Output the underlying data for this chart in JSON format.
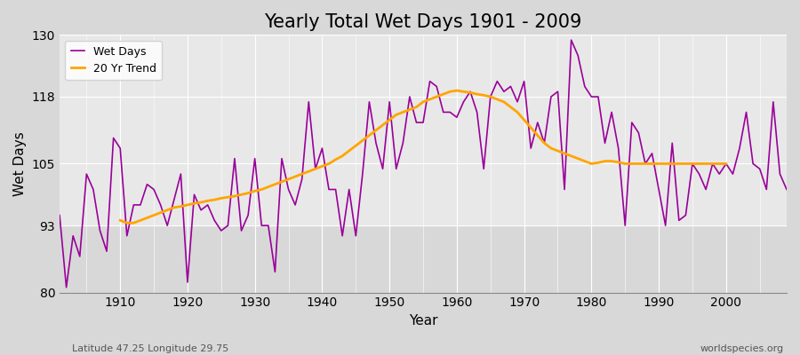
{
  "title": "Yearly Total Wet Days 1901 - 2009",
  "xlabel": "Year",
  "ylabel": "Wet Days",
  "subtitle_left": "Latitude 47.25 Longitude 29.75",
  "subtitle_right": "worldspecies.org",
  "ylim": [
    80,
    130
  ],
  "yticks": [
    80,
    93,
    105,
    118,
    130
  ],
  "bg_upper": "#dcdcdc",
  "bg_lower": "#c8c8c8",
  "line_color": "#990099",
  "trend_color": "#FFA500",
  "years": [
    1901,
    1902,
    1903,
    1904,
    1905,
    1906,
    1907,
    1908,
    1909,
    1910,
    1911,
    1912,
    1913,
    1914,
    1915,
    1916,
    1917,
    1918,
    1919,
    1920,
    1921,
    1922,
    1923,
    1924,
    1925,
    1926,
    1927,
    1928,
    1929,
    1930,
    1931,
    1932,
    1933,
    1934,
    1935,
    1936,
    1937,
    1938,
    1939,
    1940,
    1941,
    1942,
    1943,
    1944,
    1945,
    1946,
    1947,
    1948,
    1949,
    1950,
    1951,
    1952,
    1953,
    1954,
    1955,
    1956,
    1957,
    1958,
    1959,
    1960,
    1961,
    1962,
    1963,
    1964,
    1965,
    1966,
    1967,
    1968,
    1969,
    1970,
    1971,
    1972,
    1973,
    1974,
    1975,
    1976,
    1977,
    1978,
    1979,
    1980,
    1981,
    1982,
    1983,
    1984,
    1985,
    1986,
    1987,
    1988,
    1989,
    1990,
    1991,
    1992,
    1993,
    1994,
    1995,
    1996,
    1997,
    1998,
    1999,
    2000,
    2001,
    2002,
    2003,
    2004,
    2005,
    2006,
    2007,
    2008,
    2009
  ],
  "wet_days": [
    95,
    81,
    91,
    87,
    103,
    100,
    92,
    88,
    110,
    108,
    91,
    97,
    97,
    101,
    100,
    97,
    93,
    98,
    103,
    82,
    99,
    96,
    97,
    94,
    92,
    93,
    106,
    92,
    95,
    106,
    93,
    93,
    84,
    106,
    100,
    97,
    102,
    117,
    104,
    108,
    100,
    100,
    91,
    100,
    91,
    103,
    117,
    109,
    104,
    117,
    104,
    109,
    118,
    113,
    113,
    121,
    120,
    115,
    115,
    114,
    117,
    119,
    115,
    104,
    118,
    121,
    119,
    120,
    117,
    121,
    108,
    113,
    109,
    118,
    119,
    100,
    129,
    126,
    120,
    118,
    118,
    109,
    115,
    108,
    93,
    113,
    111,
    105,
    107,
    100,
    93,
    109,
    94,
    95,
    105,
    103,
    100,
    105,
    103,
    105,
    103,
    108,
    115,
    105,
    104,
    100,
    117,
    103,
    100
  ],
  "trend_years": [
    1910,
    1911,
    1912,
    1913,
    1914,
    1915,
    1916,
    1917,
    1918,
    1919,
    1920,
    1921,
    1922,
    1923,
    1924,
    1925,
    1926,
    1927,
    1928,
    1929,
    1930,
    1931,
    1932,
    1933,
    1934,
    1935,
    1936,
    1937,
    1938,
    1939,
    1940,
    1941,
    1942,
    1943,
    1944,
    1945,
    1946,
    1947,
    1948,
    1949,
    1950,
    1951,
    1952,
    1953,
    1954,
    1955,
    1956,
    1957,
    1958,
    1959,
    1960,
    1961,
    1962,
    1963,
    1964,
    1965,
    1966,
    1967,
    1968,
    1969,
    1970,
    1971,
    1972,
    1973,
    1974,
    1975,
    1976,
    1977,
    1978,
    1979,
    1980,
    1981,
    1982,
    1983,
    1984,
    1985,
    1986,
    1987,
    1988,
    1989,
    1990,
    1991,
    1992,
    1993,
    1994,
    1995,
    1996,
    1997,
    1998,
    1999,
    2000
  ],
  "trend_values": [
    94.0,
    93.5,
    93.5,
    94.0,
    94.5,
    95.0,
    95.5,
    96.0,
    96.5,
    96.7,
    97.0,
    97.3,
    97.5,
    97.8,
    98.0,
    98.3,
    98.5,
    98.7,
    99.0,
    99.3,
    99.7,
    100.0,
    100.5,
    101.0,
    101.5,
    102.0,
    102.5,
    103.0,
    103.5,
    104.0,
    104.5,
    105.0,
    105.8,
    106.5,
    107.5,
    108.5,
    109.5,
    110.5,
    111.5,
    112.5,
    113.5,
    114.5,
    115.0,
    115.5,
    116.0,
    117.0,
    117.5,
    118.0,
    118.5,
    119.0,
    119.2,
    119.0,
    118.8,
    118.5,
    118.3,
    118.0,
    117.5,
    117.0,
    116.0,
    115.0,
    113.5,
    112.0,
    110.5,
    109.0,
    108.0,
    107.5,
    107.0,
    106.5,
    106.0,
    105.5,
    105.0,
    105.2,
    105.5,
    105.5,
    105.3,
    105.0,
    105.0,
    105.0,
    105.0,
    105.0,
    105.0,
    105.0,
    105.0,
    105.0,
    105.0,
    105.0,
    105.0,
    105.0,
    105.0,
    105.0,
    105.0
  ]
}
